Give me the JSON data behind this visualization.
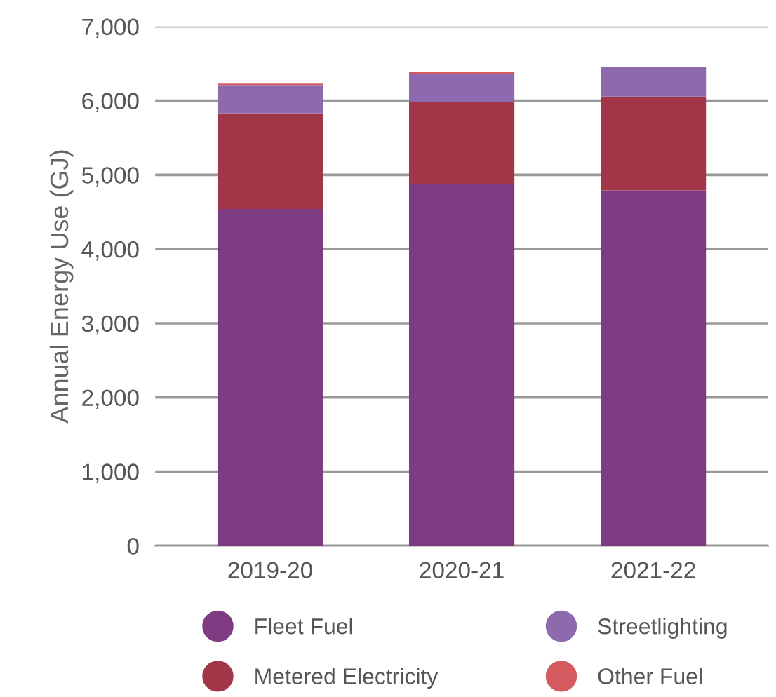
{
  "chart_data": {
    "type": "bar",
    "stacked": true,
    "ylabel": "Annual Energy Use (GJ)",
    "categories": [
      "2019-20",
      "2020-21",
      "2021-22"
    ],
    "series": [
      {
        "name": "Fleet Fuel",
        "color": "#7f3b82",
        "values": [
          4540,
          4870,
          4790
        ]
      },
      {
        "name": "Metered Electricity",
        "color": "#a13648",
        "values": [
          1290,
          1110,
          1265
        ]
      },
      {
        "name": "Streetlighting",
        "color": "#8c6aad",
        "values": [
          380,
          385,
          400
        ]
      },
      {
        "name": "Other Fuel",
        "color": "#d45a5f",
        "values": [
          20,
          20,
          0
        ]
      }
    ],
    "ylim": [
      0,
      7000
    ],
    "yticks": [
      {
        "value": 0,
        "label": "0"
      },
      {
        "value": 1000,
        "label": "1,000"
      },
      {
        "value": 2000,
        "label": "2,000"
      },
      {
        "value": 3000,
        "label": "3,000"
      },
      {
        "value": 4000,
        "label": "4,000"
      },
      {
        "value": 5000,
        "label": "5,000"
      },
      {
        "value": 6000,
        "label": "6,000"
      },
      {
        "value": 7000,
        "label": "7,000"
      }
    ],
    "grid": "y",
    "legend": "bottom"
  }
}
